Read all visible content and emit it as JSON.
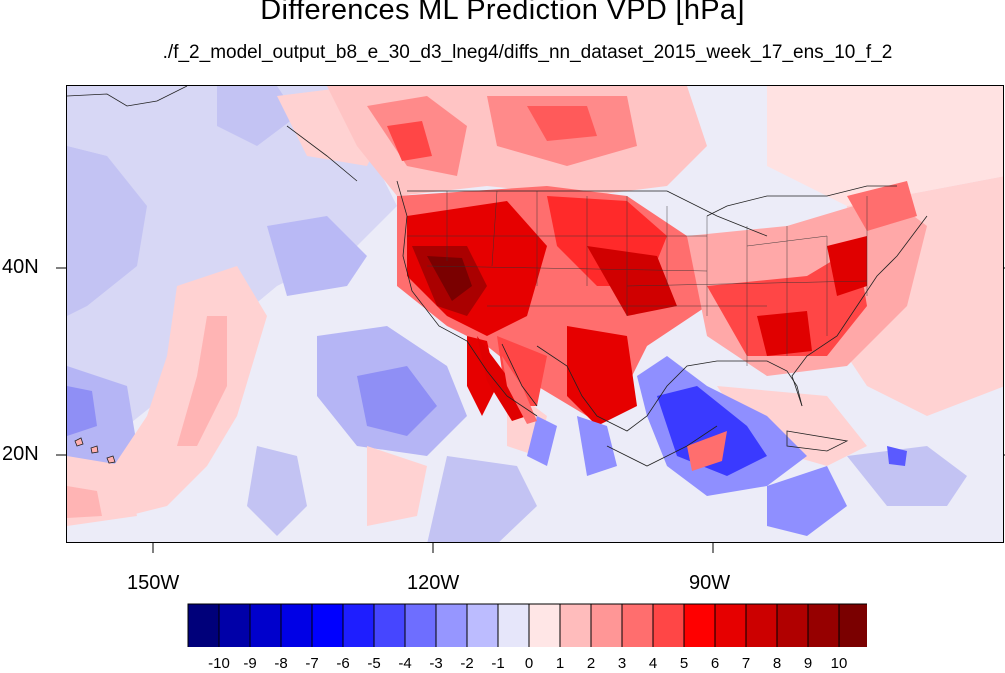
{
  "title": "Differences ML Prediction VPD [hPa]",
  "subtitle": "./f_2_model_output_b8_e_30_d3_lneg4/diffs_nn_dataset_2015_week_17_ens_10_f_2",
  "axes": {
    "lat_labels": [
      "40N",
      "20N"
    ],
    "lon_labels": [
      "150W",
      "120W",
      "90W"
    ]
  },
  "colorbar": {
    "labels": [
      "-10",
      "-9",
      "-8",
      "-7",
      "-6",
      "-5",
      "-4",
      "-3",
      "-2",
      "-1",
      "0",
      "1",
      "2",
      "3",
      "4",
      "5",
      "6",
      "7",
      "8",
      "9",
      "10"
    ],
    "colors": [
      "#00007a",
      "#0000a8",
      "#0000cc",
      "#0000e6",
      "#0000ff",
      "#1e1eff",
      "#4646ff",
      "#6e6eff",
      "#9696ff",
      "#bcbcff",
      "#e6e6fa",
      "#ffe6e6",
      "#ffbcbc",
      "#ff9696",
      "#ff6e6e",
      "#ff4646",
      "#ff0000",
      "#e60000",
      "#cc0000",
      "#b00000",
      "#960000",
      "#7a0000"
    ]
  },
  "map_colors": {
    "background": "#e8e8f8",
    "land_outline": "#222222"
  }
}
